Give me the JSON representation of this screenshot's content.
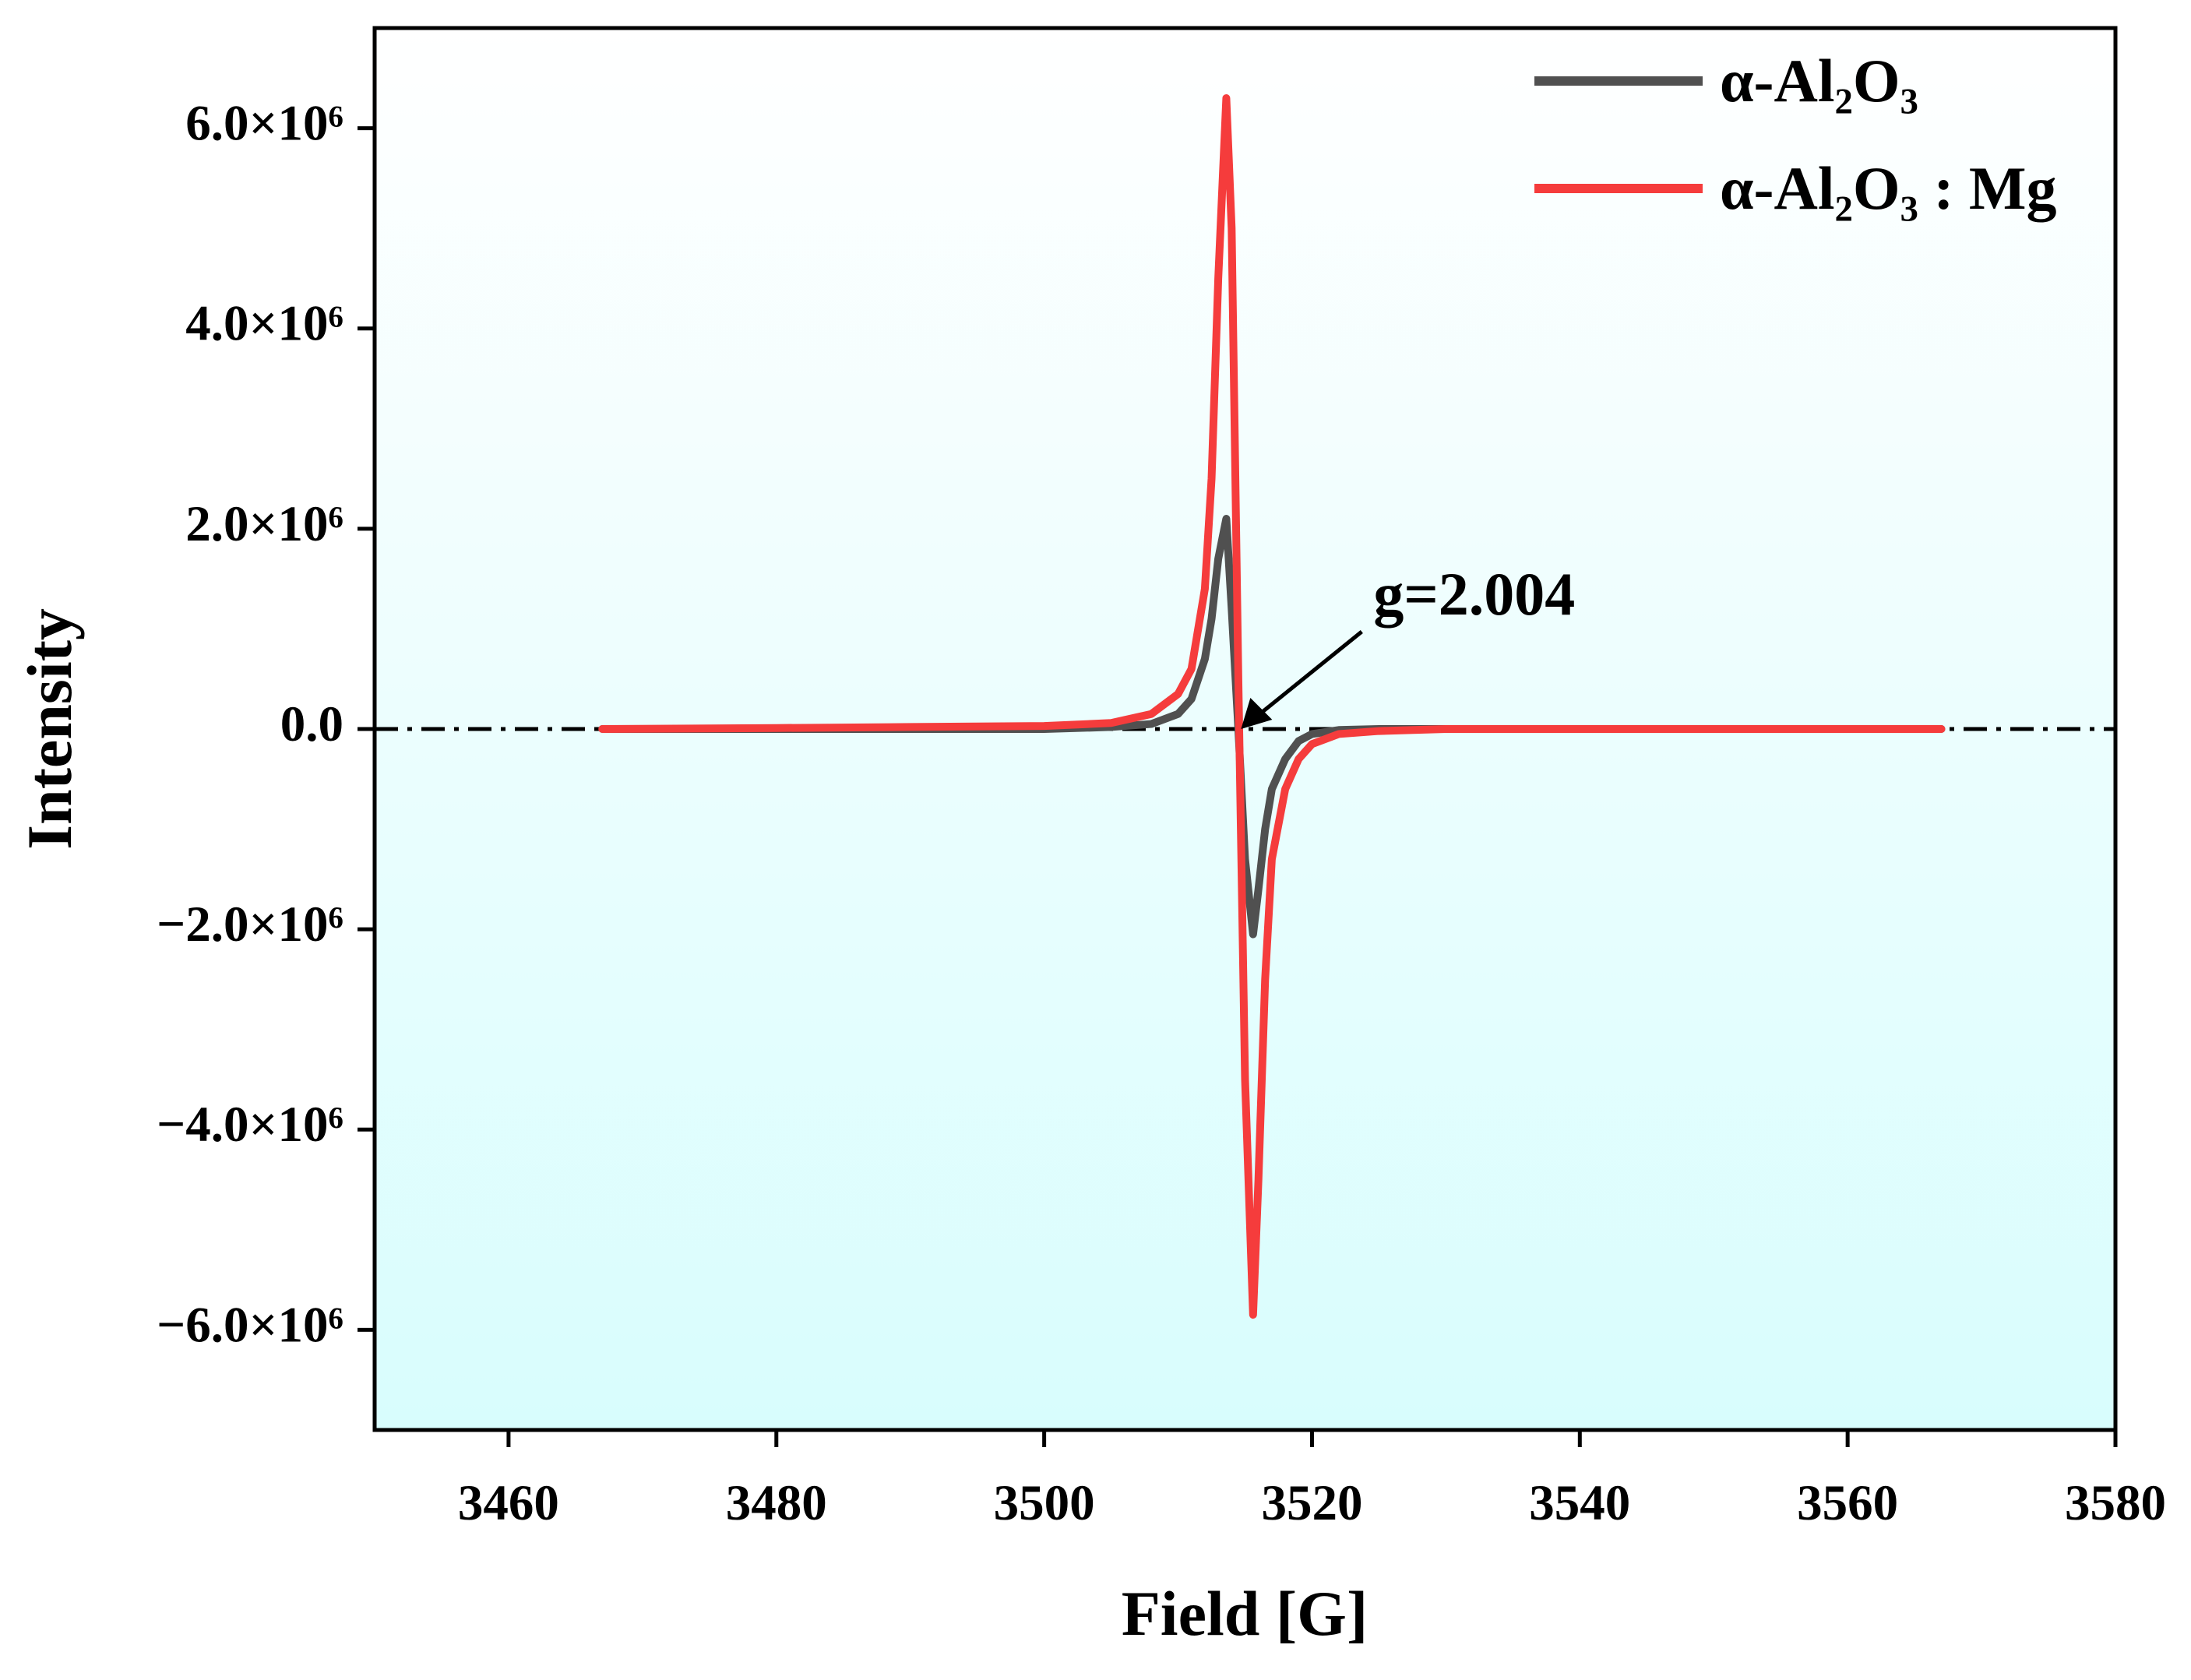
{
  "chart_data": {
    "type": "line",
    "xlabel": "Field [G]",
    "ylabel": "Intensity",
    "xlim": [
      3450,
      3580
    ],
    "xticks": [
      3460,
      3480,
      3500,
      3520,
      3540,
      3560,
      3580
    ],
    "ylim": [
      -7000000,
      7000000
    ],
    "yticks": [
      {
        "value": -6000000,
        "label": "−6.0×10⁶"
      },
      {
        "value": -4000000,
        "label": "−4.0×10⁶"
      },
      {
        "value": -2000000,
        "label": "−2.0×10⁶"
      },
      {
        "value": 0,
        "label": "0.0"
      },
      {
        "value": 2000000,
        "label": "2.0×10⁶"
      },
      {
        "value": 4000000,
        "label": "4.0×10⁶"
      },
      {
        "value": 6000000,
        "label": "6.0×10⁶"
      }
    ],
    "hline": 0,
    "legend": "upper right",
    "annotation": {
      "text": "g=2.004",
      "xy": [
        3514.7,
        0
      ]
    },
    "x": [
      3467,
      3480,
      3490,
      3500,
      3505,
      3508,
      3510,
      3511,
      3512,
      3512.5,
      3513,
      3513.6,
      3514,
      3514.5,
      3515,
      3515.6,
      3516,
      3516.5,
      3517,
      3518,
      3519,
      3520,
      3522,
      3525,
      3530,
      3540,
      3550,
      3567
    ],
    "series": [
      {
        "name": "α-Al₂O₃",
        "color": "#505050",
        "values": [
          0,
          0,
          0,
          0,
          20000,
          50000,
          150000,
          300000,
          700000,
          1100000,
          1700000,
          2100000,
          1200000,
          0,
          -1300000,
          -2050000,
          -1600000,
          -1000000,
          -600000,
          -300000,
          -120000,
          -50000,
          -10000,
          0,
          0,
          0,
          0,
          0
        ]
      },
      {
        "name": "α-Al₂O₃ : Mg",
        "color": "#f53c3c",
        "values": [
          0,
          10000,
          20000,
          30000,
          60000,
          150000,
          350000,
          600000,
          1400000,
          2500000,
          4500000,
          6300000,
          5000000,
          500000,
          -3500000,
          -5850000,
          -4500000,
          -2500000,
          -1300000,
          -600000,
          -300000,
          -150000,
          -50000,
          -20000,
          0,
          0,
          0,
          0
        ]
      }
    ]
  }
}
